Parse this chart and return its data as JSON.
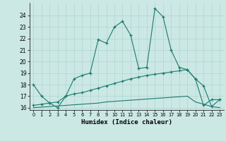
{
  "xlabel": "Humidex (Indice chaleur)",
  "x": [
    0,
    1,
    2,
    3,
    4,
    5,
    6,
    7,
    8,
    9,
    10,
    11,
    12,
    13,
    14,
    15,
    16,
    17,
    18,
    19,
    20,
    21,
    22,
    23
  ],
  "line1_y": [
    18.0,
    17.0,
    16.4,
    16.0,
    17.0,
    18.5,
    18.8,
    19.0,
    21.9,
    21.6,
    23.0,
    23.5,
    22.3,
    19.4,
    19.5,
    24.6,
    23.9,
    21.0,
    19.5,
    19.3,
    18.5,
    17.9,
    16.1,
    16.7
  ],
  "line2_y": [
    16.2,
    16.3,
    16.4,
    16.5,
    17.0,
    17.2,
    17.3,
    17.5,
    17.7,
    17.9,
    18.1,
    18.3,
    18.5,
    18.65,
    18.8,
    18.9,
    19.0,
    19.1,
    19.2,
    19.3,
    18.5,
    16.2,
    16.7,
    16.7
  ],
  "line3_y": [
    16.0,
    16.05,
    16.1,
    16.15,
    16.2,
    16.25,
    16.3,
    16.35,
    16.4,
    16.5,
    16.55,
    16.6,
    16.65,
    16.7,
    16.75,
    16.8,
    16.85,
    16.9,
    16.95,
    17.0,
    16.5,
    16.3,
    16.1,
    16.0
  ],
  "line_color": "#1a7a6e",
  "bg_color": "#cce8e4",
  "grid_color": "#aed4cf",
  "ylim": [
    15.8,
    25.1
  ],
  "xlim": [
    -0.5,
    23.5
  ],
  "yticks": [
    16,
    17,
    18,
    19,
    20,
    21,
    22,
    23,
    24
  ],
  "xticks": [
    0,
    1,
    2,
    3,
    4,
    5,
    6,
    7,
    8,
    9,
    10,
    11,
    12,
    13,
    14,
    15,
    16,
    17,
    18,
    19,
    20,
    21,
    22,
    23
  ]
}
